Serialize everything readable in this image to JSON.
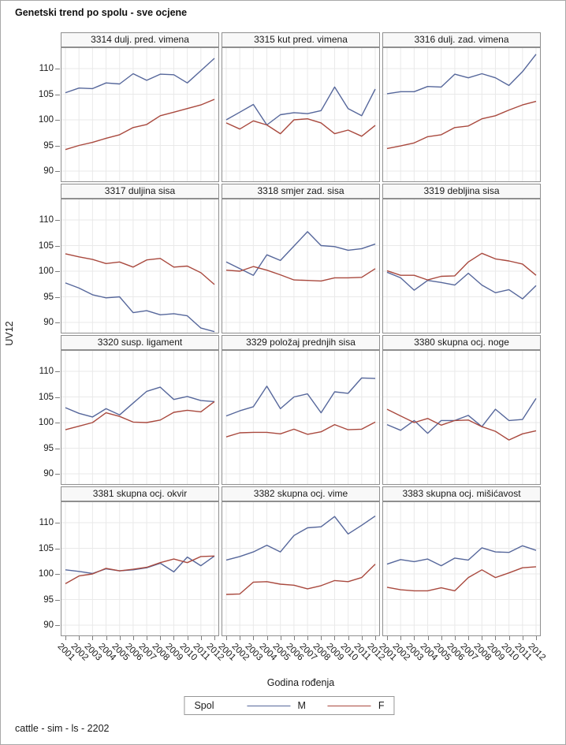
{
  "title": "Genetski trend po spolu - sve ocjene",
  "footnote": "cattle - sim - ls - 2202",
  "y_axis": {
    "label": "UV12",
    "ticks": [
      110,
      105,
      100,
      95,
      90
    ]
  },
  "x_axis": {
    "label": "Godina rođenja"
  },
  "legend": {
    "title": "Spol",
    "entries": [
      {
        "label": "M",
        "color": "#56679b"
      },
      {
        "label": "F",
        "color": "#a9493e"
      }
    ]
  },
  "colors": {
    "male": "#56679b",
    "female": "#a9493e",
    "grid": "#e9e9e9",
    "frame": "#8f8f8f",
    "header_bg": "#f8f8f8",
    "tick": "#7d7d7d"
  },
  "chart_data": [
    {
      "type": "line",
      "title": "3314 dulj. pred. vimena",
      "ylim": [
        88,
        114
      ],
      "x": [
        2001,
        2002,
        2003,
        2004,
        2005,
        2006,
        2007,
        2008,
        2009,
        2010,
        2011,
        2012
      ],
      "series": [
        {
          "name": "M",
          "values": [
            105.3,
            106.2,
            106.1,
            107.2,
            107.0,
            109.0,
            107.7,
            108.9,
            108.8,
            107.2,
            109.6,
            112.0
          ]
        },
        {
          "name": "F",
          "values": [
            94.2,
            95.0,
            95.6,
            96.4,
            97.1,
            98.5,
            99.1,
            100.8,
            101.5,
            102.2,
            102.9,
            104.0
          ]
        }
      ]
    },
    {
      "type": "line",
      "title": "3315 kut pred. vimena",
      "ylim": [
        88,
        114
      ],
      "x": [
        2001,
        2002,
        2003,
        2004,
        2005,
        2006,
        2007,
        2008,
        2009,
        2010,
        2011,
        2012
      ],
      "series": [
        {
          "name": "M",
          "values": [
            100.0,
            101.5,
            103.0,
            99.0,
            101.0,
            101.4,
            101.2,
            101.8,
            106.4,
            102.2,
            100.8,
            106.0
          ]
        },
        {
          "name": "F",
          "values": [
            99.4,
            98.2,
            99.8,
            99.0,
            97.3,
            100.0,
            100.2,
            99.4,
            97.3,
            98.0,
            96.8,
            98.9
          ]
        }
      ]
    },
    {
      "type": "line",
      "title": "3316 dulj. zad. vimena",
      "ylim": [
        88,
        114
      ],
      "x": [
        2001,
        2002,
        2003,
        2004,
        2005,
        2006,
        2007,
        2008,
        2009,
        2010,
        2011,
        2012
      ],
      "series": [
        {
          "name": "M",
          "values": [
            105.1,
            105.5,
            105.5,
            106.5,
            106.4,
            108.9,
            108.2,
            109.0,
            108.2,
            106.7,
            109.4,
            112.8
          ]
        },
        {
          "name": "F",
          "values": [
            94.4,
            94.9,
            95.5,
            96.7,
            97.1,
            98.5,
            98.8,
            100.2,
            100.8,
            101.9,
            102.9,
            103.6
          ]
        }
      ]
    },
    {
      "type": "line",
      "title": "3317 duljina sisa",
      "ylim": [
        88,
        114
      ],
      "x": [
        2001,
        2002,
        2003,
        2004,
        2005,
        2006,
        2007,
        2008,
        2009,
        2010,
        2011,
        2012
      ],
      "series": [
        {
          "name": "M",
          "values": [
            97.7,
            96.7,
            95.4,
            94.8,
            95.0,
            91.9,
            92.3,
            91.5,
            91.7,
            91.3,
            88.9,
            88.2
          ]
        },
        {
          "name": "F",
          "values": [
            103.4,
            102.8,
            102.3,
            101.5,
            101.8,
            100.8,
            102.2,
            102.5,
            100.8,
            101.0,
            99.7,
            97.4
          ]
        }
      ]
    },
    {
      "type": "line",
      "title": "3318 smjer zad. sisa",
      "ylim": [
        88,
        114
      ],
      "x": [
        2001,
        2002,
        2003,
        2004,
        2005,
        2006,
        2007,
        2008,
        2009,
        2010,
        2011,
        2012
      ],
      "series": [
        {
          "name": "M",
          "values": [
            101.8,
            100.5,
            99.2,
            103.2,
            102.1,
            104.9,
            107.7,
            105.0,
            104.8,
            104.1,
            104.4,
            105.3
          ]
        },
        {
          "name": "F",
          "values": [
            100.2,
            100.0,
            100.9,
            100.2,
            99.3,
            98.3,
            98.2,
            98.1,
            98.7,
            98.7,
            98.8,
            100.5
          ]
        }
      ]
    },
    {
      "type": "line",
      "title": "3319 debljina sisa",
      "ylim": [
        88,
        114
      ],
      "x": [
        2001,
        2002,
        2003,
        2004,
        2005,
        2006,
        2007,
        2008,
        2009,
        2010,
        2011,
        2012
      ],
      "series": [
        {
          "name": "M",
          "values": [
            99.8,
            98.7,
            96.3,
            98.2,
            97.8,
            97.3,
            99.6,
            97.3,
            95.8,
            96.4,
            94.6,
            97.2
          ]
        },
        {
          "name": "F",
          "values": [
            100.1,
            99.2,
            99.2,
            98.3,
            99.0,
            99.1,
            101.8,
            103.5,
            102.4,
            102.0,
            101.4,
            99.2
          ]
        }
      ]
    },
    {
      "type": "line",
      "title": "3320 susp. ligament",
      "ylim": [
        88,
        114
      ],
      "x": [
        2001,
        2002,
        2003,
        2004,
        2005,
        2006,
        2007,
        2008,
        2009,
        2010,
        2011,
        2012
      ],
      "series": [
        {
          "name": "M",
          "values": [
            102.9,
            101.8,
            101.1,
            102.7,
            101.5,
            103.8,
            106.1,
            106.9,
            104.5,
            105.1,
            104.3,
            104.1
          ]
        },
        {
          "name": "F",
          "values": [
            98.6,
            99.3,
            100.0,
            101.9,
            101.2,
            100.1,
            100.0,
            100.5,
            102.0,
            102.4,
            102.1,
            104.1
          ]
        }
      ]
    },
    {
      "type": "line",
      "title": "3329 položaj prednjih sisa",
      "ylim": [
        88,
        114
      ],
      "x": [
        2001,
        2002,
        2003,
        2004,
        2005,
        2006,
        2007,
        2008,
        2009,
        2010,
        2011,
        2012
      ],
      "series": [
        {
          "name": "M",
          "values": [
            101.3,
            102.3,
            103.1,
            107.1,
            102.7,
            105.0,
            105.6,
            101.9,
            106.0,
            105.7,
            108.7,
            108.6
          ]
        },
        {
          "name": "F",
          "values": [
            97.2,
            98.0,
            98.1,
            98.1,
            97.8,
            98.7,
            97.7,
            98.2,
            99.6,
            98.6,
            98.7,
            100.1
          ]
        }
      ]
    },
    {
      "type": "line",
      "title": "3380 skupna ocj. noge",
      "ylim": [
        88,
        114
      ],
      "x": [
        2001,
        2002,
        2003,
        2004,
        2005,
        2006,
        2007,
        2008,
        2009,
        2010,
        2011,
        2012
      ],
      "series": [
        {
          "name": "M",
          "values": [
            99.6,
            98.5,
            100.4,
            97.9,
            100.4,
            100.4,
            101.4,
            99.2,
            102.6,
            100.4,
            100.6,
            104.7
          ]
        },
        {
          "name": "F",
          "values": [
            102.6,
            101.3,
            100.0,
            100.8,
            99.5,
            100.4,
            100.5,
            99.2,
            98.3,
            96.6,
            97.8,
            98.4
          ]
        }
      ]
    },
    {
      "type": "line",
      "title": "3381 skupna ocj. okvir",
      "ylim": [
        88,
        114
      ],
      "x": [
        2001,
        2002,
        2003,
        2004,
        2005,
        2006,
        2007,
        2008,
        2009,
        2010,
        2011,
        2012
      ],
      "series": [
        {
          "name": "M",
          "values": [
            100.8,
            100.5,
            100.1,
            101.0,
            100.6,
            100.8,
            101.2,
            102.1,
            100.4,
            103.3,
            101.6,
            103.5
          ]
        },
        {
          "name": "F",
          "values": [
            98.1,
            99.6,
            100.0,
            101.1,
            100.6,
            100.9,
            101.3,
            102.2,
            102.9,
            102.2,
            103.4,
            103.5
          ]
        }
      ]
    },
    {
      "type": "line",
      "title": "3382 skupna ocj. vime",
      "ylim": [
        88,
        114
      ],
      "x": [
        2001,
        2002,
        2003,
        2004,
        2005,
        2006,
        2007,
        2008,
        2009,
        2010,
        2011,
        2012
      ],
      "series": [
        {
          "name": "M",
          "values": [
            102.7,
            103.4,
            104.3,
            105.6,
            104.3,
            107.5,
            109.0,
            109.2,
            111.2,
            107.8,
            109.5,
            111.3
          ]
        },
        {
          "name": "F",
          "values": [
            96.0,
            96.1,
            98.4,
            98.5,
            98.0,
            97.8,
            97.1,
            97.7,
            98.7,
            98.5,
            99.3,
            101.9
          ]
        }
      ]
    },
    {
      "type": "line",
      "title": "3383 skupna ocj. mišićavost",
      "ylim": [
        88,
        114
      ],
      "x": [
        2001,
        2002,
        2003,
        2004,
        2005,
        2006,
        2007,
        2008,
        2009,
        2010,
        2011,
        2012
      ],
      "series": [
        {
          "name": "M",
          "values": [
            101.9,
            102.8,
            102.4,
            102.9,
            101.6,
            103.1,
            102.7,
            105.1,
            104.3,
            104.2,
            105.5,
            104.6
          ]
        },
        {
          "name": "F",
          "values": [
            97.4,
            96.9,
            96.7,
            96.7,
            97.3,
            96.7,
            99.3,
            100.8,
            99.3,
            100.2,
            101.2,
            101.4
          ]
        }
      ]
    }
  ]
}
